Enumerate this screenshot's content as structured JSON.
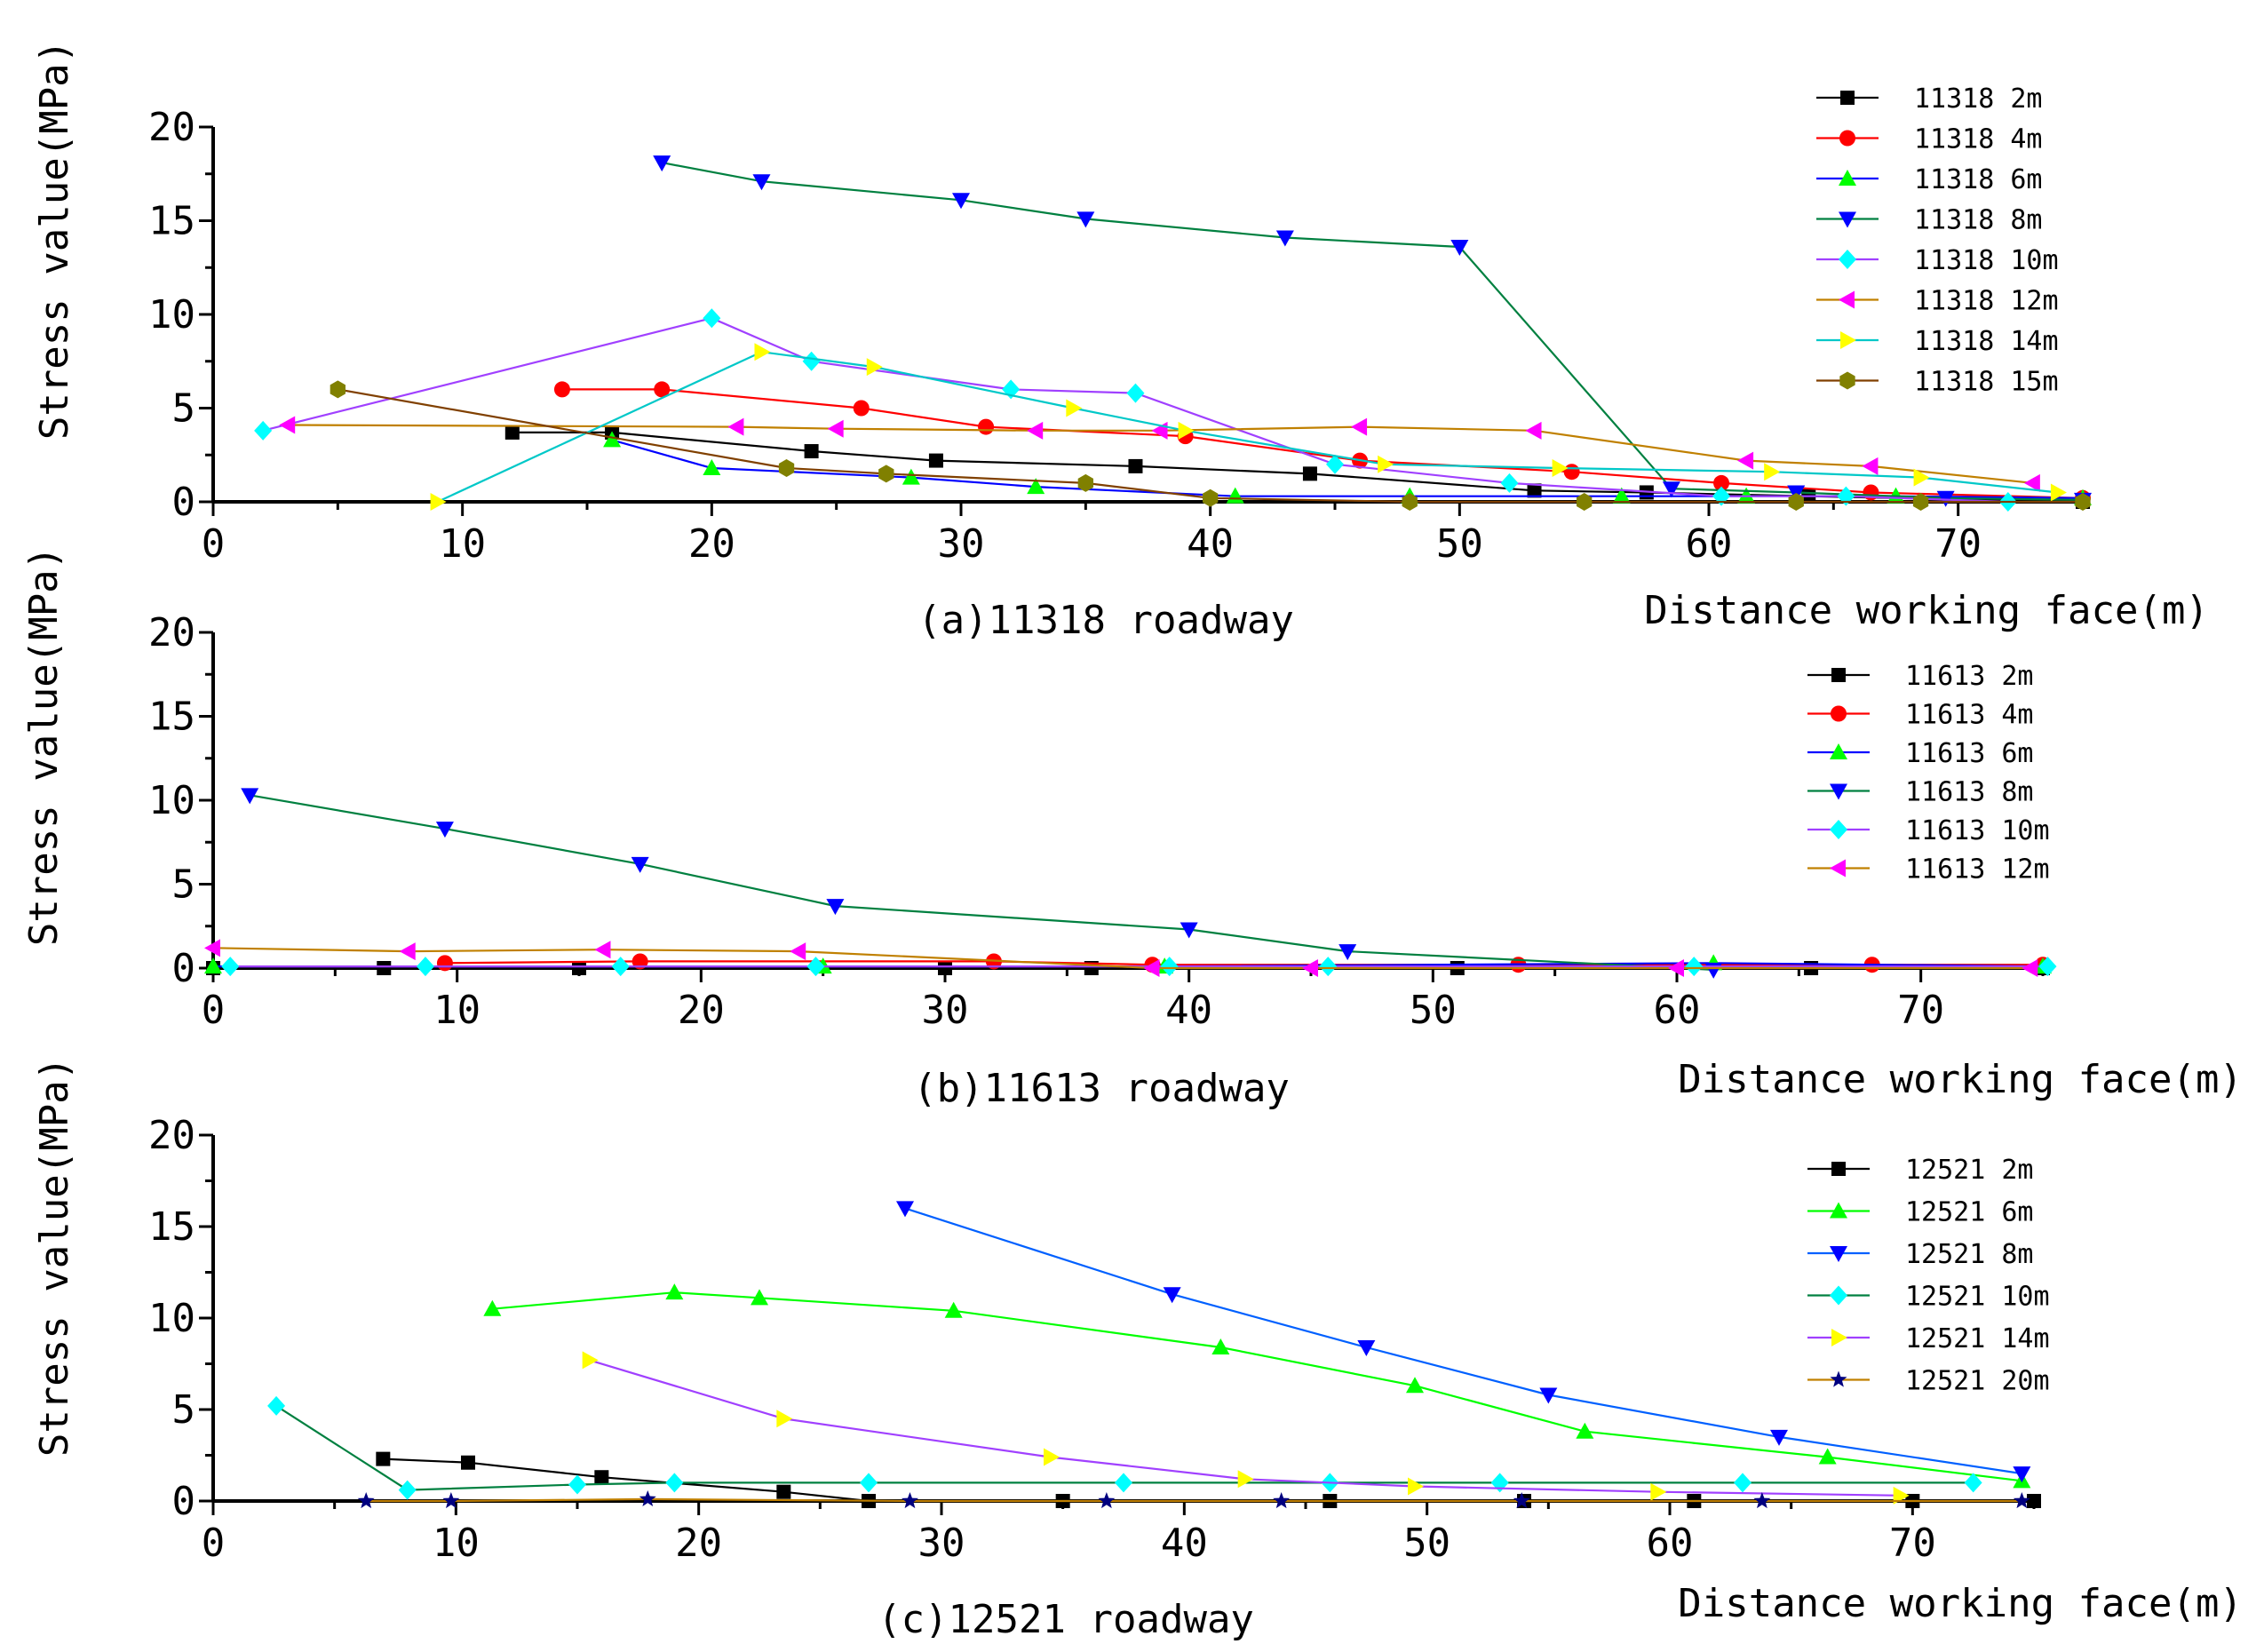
{
  "figure": {
    "charts": [
      {
        "caption": "(a)11318 roadway",
        "xlabel": "Distance working face(m)",
        "ylabel": "Stress value(MPa)"
      },
      {
        "caption": "(b)11613 roadway",
        "xlabel": "Distance working face(m)",
        "ylabel": "Stress value(MPa)"
      },
      {
        "caption": "(c)12521 roadway",
        "xlabel": "Distance working face(m)",
        "ylabel": "Stress value(MPa)"
      }
    ]
  },
  "chart_data": [
    {
      "type": "line",
      "title": "(a)11318 roadway",
      "xlabel": "Distance working face(m)",
      "ylabel": "Stress value(MPa)",
      "xlim": [
        0,
        75
      ],
      "ylim": [
        0,
        20
      ],
      "xticks": [
        "0",
        "10",
        "20",
        "30",
        "40",
        "50",
        "60",
        "70"
      ],
      "yticks": [
        "0",
        "5",
        "10",
        "15",
        "20"
      ],
      "legend_position": "top-right",
      "series": [
        {
          "name": "11318 2m",
          "line_color": "#000000",
          "marker": "square",
          "marker_color": "#000000",
          "x": [
            12,
            16,
            24,
            29,
            37,
            44,
            53,
            57.5,
            64,
            75
          ],
          "y": [
            3.7,
            3.7,
            2.7,
            2.2,
            1.9,
            1.5,
            0.6,
            0.5,
            0.3,
            0.0
          ]
        },
        {
          "name": "11318 4m",
          "line_color": "#ff0000",
          "marker": "circle",
          "marker_color": "#ff0000",
          "x": [
            14,
            18,
            26,
            31,
            39,
            46,
            54.5,
            60.5,
            66.5,
            75
          ],
          "y": [
            6.0,
            6.0,
            5.0,
            4.0,
            3.5,
            2.2,
            1.6,
            1.0,
            0.5,
            0.2
          ]
        },
        {
          "name": "11318 6m",
          "line_color": "#0000ff",
          "marker": "triangle-up",
          "marker_color": "#00ff00",
          "x": [
            16,
            20,
            28,
            33,
            41,
            48,
            56.5,
            61.5,
            67.5,
            75
          ],
          "y": [
            3.3,
            1.8,
            1.3,
            0.8,
            0.3,
            0.3,
            0.3,
            0.3,
            0.3,
            0.2
          ]
        },
        {
          "name": "11318 8m",
          "line_color": "#008040",
          "marker": "triangle-down",
          "marker_color": "#0000ff",
          "x": [
            18,
            22,
            30,
            35,
            43,
            50,
            58.5,
            63.5,
            69.5,
            75
          ],
          "y": [
            18.1,
            17.1,
            16.1,
            15.1,
            14.1,
            13.6,
            0.7,
            0.5,
            0.2,
            0.1
          ]
        },
        {
          "name": "11318 10m",
          "line_color": "#a040ff",
          "marker": "diamond",
          "marker_color": "#00ffff",
          "x": [
            2,
            20,
            24,
            32,
            37,
            45,
            52,
            60.5,
            65.5,
            72
          ],
          "y": [
            3.8,
            9.8,
            7.5,
            6.0,
            5.8,
            2.0,
            1.0,
            0.3,
            0.3,
            0.0
          ]
        },
        {
          "name": "11318 12m",
          "line_color": "#c08000",
          "marker": "triangle-left",
          "marker_color": "#ff00ff",
          "x": [
            3,
            21,
            25,
            33,
            38,
            46,
            53,
            61.5,
            66.5,
            73
          ],
          "y": [
            4.1,
            4.0,
            3.9,
            3.8,
            3.8,
            4.0,
            3.8,
            2.2,
            1.9,
            1.0
          ]
        },
        {
          "name": "11318 14m",
          "line_color": "#00c8c8",
          "marker": "triangle-right",
          "marker_color": "#ffff00",
          "x": [
            9,
            22,
            26.5,
            34.5,
            39,
            47,
            54,
            62.5,
            68.5,
            74
          ],
          "y": [
            0.0,
            8.0,
            7.2,
            5.0,
            3.8,
            2.0,
            1.8,
            1.6,
            1.3,
            0.5
          ]
        },
        {
          "name": "11318 15m",
          "line_color": "#804000",
          "marker": "hexagon",
          "marker_color": "#808000",
          "x": [
            5,
            23,
            27,
            35,
            40,
            48,
            55,
            63.5,
            68.5,
            75
          ],
          "y": [
            6.0,
            1.8,
            1.5,
            1.0,
            0.2,
            0.0,
            0.0,
            0.0,
            0.0,
            0.0
          ]
        }
      ]
    },
    {
      "type": "line",
      "title": "(b)11613 roadway",
      "xlabel": "Distance working face(m)",
      "ylabel": "Stress value(MPa)",
      "xlim": [
        0,
        75
      ],
      "ylim": [
        0,
        20
      ],
      "xticks": [
        "0",
        "10",
        "20",
        "30",
        "40",
        "50",
        "60",
        "70"
      ],
      "yticks": [
        "0",
        "5",
        "10",
        "15",
        "20"
      ],
      "legend_position": "top-right",
      "series": [
        {
          "name": "11613 2m",
          "line_color": "#000000",
          "marker": "square",
          "marker_color": "#000000",
          "x": [
            0,
            7,
            15,
            30,
            36,
            51,
            65.5,
            75
          ],
          "y": [
            0.0,
            0.0,
            0.0,
            0.0,
            0.0,
            0.0,
            0.0,
            0.0
          ]
        },
        {
          "name": "11613 4m",
          "line_color": "#ff0000",
          "marker": "circle",
          "marker_color": "#ff0000",
          "x": [
            9.5,
            17.5,
            32,
            38.5,
            53.5,
            68,
            75
          ],
          "y": [
            0.3,
            0.4,
            0.4,
            0.2,
            0.2,
            0.2,
            0.2
          ]
        },
        {
          "name": "11613 6m",
          "line_color": "#0000ff",
          "marker": "triangle-up",
          "marker_color": "#00ff00",
          "x": [
            0,
            25,
            39,
            61.5,
            75
          ],
          "y": [
            0.1,
            0.1,
            0.1,
            0.3,
            0.1
          ]
        },
        {
          "name": "11613 8m",
          "line_color": "#008040",
          "marker": "triangle-down",
          "marker_color": "#0000ff",
          "x": [
            1.5,
            9.5,
            17.5,
            25.5,
            40,
            46.5,
            61.5
          ],
          "y": [
            10.3,
            8.3,
            6.2,
            3.7,
            2.3,
            1.0,
            -0.1
          ]
        },
        {
          "name": "11613 10m",
          "line_color": "#a040ff",
          "marker": "diamond",
          "marker_color": "#00ffff",
          "x": [
            0.7,
            8.7,
            16.7,
            24.7,
            39.2,
            45.7,
            60.7,
            75.2
          ],
          "y": [
            0.1,
            0.1,
            0.1,
            0.1,
            0.1,
            0.1,
            0.1,
            0.1
          ]
        },
        {
          "name": "11613 12m",
          "line_color": "#c08000",
          "marker": "triangle-left",
          "marker_color": "#ff00ff",
          "x": [
            0,
            8,
            16,
            24,
            38.5,
            45,
            60,
            74.5
          ],
          "y": [
            1.2,
            1.0,
            1.1,
            1.0,
            0.0,
            0.0,
            0.0,
            0.0
          ]
        }
      ]
    },
    {
      "type": "line",
      "title": "(c)12521 roadway",
      "xlabel": "Distance working face(m)",
      "ylabel": "Stress value(MPa)",
      "xlim": [
        0,
        75
      ],
      "ylim": [
        0,
        20
      ],
      "xticks": [
        "0",
        "10",
        "20",
        "30",
        "40",
        "50",
        "60",
        "70"
      ],
      "yticks": [
        "0",
        "5",
        "10",
        "15",
        "20"
      ],
      "legend_position": "top-right",
      "series": [
        {
          "name": "12521 2m",
          "line_color": "#000000",
          "marker": "square",
          "marker_color": "#000000",
          "x": [
            7,
            10.5,
            16,
            23.5,
            27,
            35,
            46,
            54,
            61,
            70,
            75
          ],
          "y": [
            2.3,
            2.1,
            1.3,
            0.5,
            0.0,
            0.0,
            0.0,
            0.0,
            0.0,
            0.0,
            0.0
          ]
        },
        {
          "name": "12521 6m",
          "line_color": "#00ff00",
          "marker": "triangle-up",
          "marker_color": "#00ff00",
          "x": [
            11.5,
            19,
            22.5,
            30.5,
            41.5,
            49.5,
            56.5,
            66.5,
            74.5
          ],
          "y": [
            10.5,
            11.4,
            11.1,
            10.4,
            8.4,
            6.3,
            3.8,
            2.4,
            1.1
          ]
        },
        {
          "name": "12521 8m",
          "line_color": "#0060ff",
          "marker": "triangle-down",
          "marker_color": "#0000ff",
          "x": [
            28.5,
            39.5,
            47.5,
            55,
            64.5,
            74.5
          ],
          "y": [
            16.0,
            11.3,
            8.4,
            5.8,
            3.5,
            1.5
          ]
        },
        {
          "name": "12521 10m",
          "line_color": "#008040",
          "marker": "diamond",
          "marker_color": "#00ffff",
          "x": [
            2.6,
            8,
            15,
            19,
            27,
            37.5,
            46,
            53,
            63,
            72.5
          ],
          "y": [
            5.2,
            0.6,
            0.9,
            1.0,
            1.0,
            1.0,
            1.0,
            1.0,
            1.0,
            1.0
          ]
        },
        {
          "name": "12521 14m",
          "line_color": "#a040ff",
          "marker": "triangle-right",
          "marker_color": "#ffff00",
          "x": [
            15.5,
            23.5,
            34.5,
            42.5,
            49.5,
            59.5,
            69.5
          ],
          "y": [
            7.7,
            4.5,
            2.4,
            1.2,
            0.8,
            0.5,
            0.3
          ]
        },
        {
          "name": "12521 20m",
          "line_color": "#c08000",
          "marker": "star",
          "marker_color": "#000080",
          "x": [
            6.3,
            9.8,
            17.9,
            28.7,
            36.8,
            44,
            53.9,
            63.8,
            74.5
          ],
          "y": [
            0.0,
            0.0,
            0.1,
            0.0,
            0.0,
            0.0,
            0.0,
            0.0,
            0.0
          ]
        }
      ]
    }
  ]
}
